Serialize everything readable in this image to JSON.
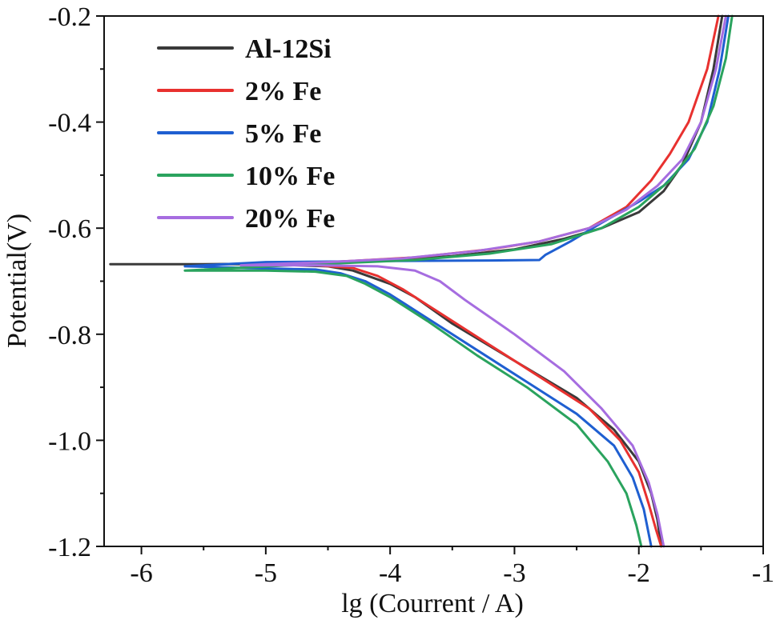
{
  "chart_data": {
    "type": "line",
    "title": "",
    "xlabel": "lg (Courrent / A)",
    "ylabel": "Potential(V)",
    "xlim": [
      -6.3,
      -1.0
    ],
    "ylim": [
      -1.2,
      -0.2
    ],
    "x_ticks": [
      -6,
      -5,
      -4,
      -3,
      -2,
      -1
    ],
    "x_tick_labels": [
      "-6",
      "-5",
      "-4",
      "-3",
      "-2",
      "-1"
    ],
    "y_ticks": [
      -0.2,
      -0.4,
      -0.6,
      -0.8,
      -1.0,
      -1.2
    ],
    "y_tick_labels": [
      "-0.2",
      "-0.4",
      "-0.6",
      "-0.8",
      "-1.0",
      "-1.2"
    ],
    "grid": false,
    "legend_position": "top-left",
    "series": [
      {
        "name": "Al-12Si",
        "color": "#3a3a3a",
        "points": [
          [
            -1.33,
            -0.2
          ],
          [
            -1.4,
            -0.3
          ],
          [
            -1.5,
            -0.4
          ],
          [
            -1.65,
            -0.48
          ],
          [
            -1.8,
            -0.53
          ],
          [
            -2.0,
            -0.57
          ],
          [
            -2.3,
            -0.6
          ],
          [
            -2.6,
            -0.62
          ],
          [
            -3.0,
            -0.64
          ],
          [
            -3.5,
            -0.653
          ],
          [
            -4.0,
            -0.66
          ],
          [
            -4.5,
            -0.664
          ],
          [
            -5.0,
            -0.667
          ],
          [
            -5.5,
            -0.668
          ],
          [
            -6.0,
            -0.668
          ],
          [
            -6.25,
            -0.668
          ],
          [
            -5.0,
            -0.668
          ],
          [
            -4.5,
            -0.672
          ],
          [
            -4.3,
            -0.68
          ],
          [
            -4.0,
            -0.705
          ],
          [
            -3.8,
            -0.73
          ],
          [
            -3.5,
            -0.78
          ],
          [
            -3.0,
            -0.85
          ],
          [
            -2.5,
            -0.92
          ],
          [
            -2.2,
            -0.98
          ],
          [
            -2.0,
            -1.04
          ],
          [
            -1.9,
            -1.1
          ],
          [
            -1.85,
            -1.15
          ],
          [
            -1.82,
            -1.2
          ]
        ]
      },
      {
        "name": "2% Fe",
        "color": "#e8312f",
        "points": [
          [
            -1.36,
            -0.2
          ],
          [
            -1.45,
            -0.3
          ],
          [
            -1.6,
            -0.4
          ],
          [
            -1.75,
            -0.46
          ],
          [
            -1.9,
            -0.51
          ],
          [
            -2.1,
            -0.56
          ],
          [
            -2.4,
            -0.6
          ],
          [
            -2.8,
            -0.625
          ],
          [
            -3.2,
            -0.64
          ],
          [
            -3.8,
            -0.655
          ],
          [
            -4.4,
            -0.663
          ],
          [
            -5.0,
            -0.667
          ],
          [
            -5.2,
            -0.668
          ],
          [
            -4.6,
            -0.67
          ],
          [
            -4.3,
            -0.675
          ],
          [
            -4.1,
            -0.69
          ],
          [
            -3.9,
            -0.715
          ],
          [
            -3.6,
            -0.76
          ],
          [
            -3.2,
            -0.82
          ],
          [
            -2.8,
            -0.88
          ],
          [
            -2.4,
            -0.94
          ],
          [
            -2.15,
            -1.0
          ],
          [
            -2.0,
            -1.06
          ],
          [
            -1.92,
            -1.12
          ],
          [
            -1.86,
            -1.17
          ],
          [
            -1.82,
            -1.2
          ]
        ]
      },
      {
        "name": "5% Fe",
        "color": "#1f5fd1",
        "points": [
          [
            -1.28,
            -0.2
          ],
          [
            -1.35,
            -0.3
          ],
          [
            -1.45,
            -0.4
          ],
          [
            -1.6,
            -0.47
          ],
          [
            -1.8,
            -0.52
          ],
          [
            -2.0,
            -0.55
          ],
          [
            -2.3,
            -0.59
          ],
          [
            -2.55,
            -0.625
          ],
          [
            -2.75,
            -0.65
          ],
          [
            -2.8,
            -0.66
          ],
          [
            -3.2,
            -0.661
          ],
          [
            -4.0,
            -0.662
          ],
          [
            -4.5,
            -0.663
          ],
          [
            -5.0,
            -0.664
          ],
          [
            -5.65,
            -0.672
          ],
          [
            -5.0,
            -0.676
          ],
          [
            -4.6,
            -0.678
          ],
          [
            -4.4,
            -0.685
          ],
          [
            -4.2,
            -0.7
          ],
          [
            -4.0,
            -0.725
          ],
          [
            -3.7,
            -0.77
          ],
          [
            -3.3,
            -0.83
          ],
          [
            -2.9,
            -0.89
          ],
          [
            -2.5,
            -0.95
          ],
          [
            -2.2,
            -1.01
          ],
          [
            -2.05,
            -1.07
          ],
          [
            -1.96,
            -1.13
          ],
          [
            -1.9,
            -1.2
          ]
        ]
      },
      {
        "name": "10% Fe",
        "color": "#2aa35e",
        "points": [
          [
            -1.25,
            -0.2
          ],
          [
            -1.3,
            -0.28
          ],
          [
            -1.4,
            -0.37
          ],
          [
            -1.55,
            -0.45
          ],
          [
            -1.75,
            -0.51
          ],
          [
            -2.0,
            -0.56
          ],
          [
            -2.3,
            -0.6
          ],
          [
            -2.7,
            -0.63
          ],
          [
            -3.2,
            -0.648
          ],
          [
            -3.8,
            -0.66
          ],
          [
            -4.4,
            -0.666
          ],
          [
            -4.8,
            -0.67
          ],
          [
            -5.65,
            -0.68
          ],
          [
            -5.0,
            -0.68
          ],
          [
            -4.6,
            -0.682
          ],
          [
            -4.35,
            -0.69
          ],
          [
            -4.2,
            -0.705
          ],
          [
            -4.0,
            -0.73
          ],
          [
            -3.7,
            -0.775
          ],
          [
            -3.3,
            -0.84
          ],
          [
            -2.9,
            -0.9
          ],
          [
            -2.5,
            -0.97
          ],
          [
            -2.25,
            -1.04
          ],
          [
            -2.1,
            -1.1
          ],
          [
            -2.02,
            -1.16
          ],
          [
            -1.98,
            -1.2
          ]
        ]
      },
      {
        "name": "20% Fe",
        "color": "#a66de0",
        "points": [
          [
            -1.3,
            -0.2
          ],
          [
            -1.38,
            -0.3
          ],
          [
            -1.5,
            -0.4
          ],
          [
            -1.65,
            -0.47
          ],
          [
            -1.85,
            -0.52
          ],
          [
            -2.1,
            -0.565
          ],
          [
            -2.4,
            -0.6
          ],
          [
            -2.8,
            -0.625
          ],
          [
            -3.3,
            -0.643
          ],
          [
            -3.9,
            -0.657
          ],
          [
            -4.5,
            -0.664
          ],
          [
            -5.0,
            -0.668
          ],
          [
            -5.2,
            -0.67
          ],
          [
            -4.6,
            -0.67
          ],
          [
            -4.1,
            -0.672
          ],
          [
            -3.8,
            -0.68
          ],
          [
            -3.6,
            -0.7
          ],
          [
            -3.4,
            -0.735
          ],
          [
            -3.0,
            -0.8
          ],
          [
            -2.6,
            -0.87
          ],
          [
            -2.3,
            -0.94
          ],
          [
            -2.05,
            -1.01
          ],
          [
            -1.92,
            -1.08
          ],
          [
            -1.85,
            -1.14
          ],
          [
            -1.8,
            -1.2
          ]
        ]
      }
    ]
  }
}
